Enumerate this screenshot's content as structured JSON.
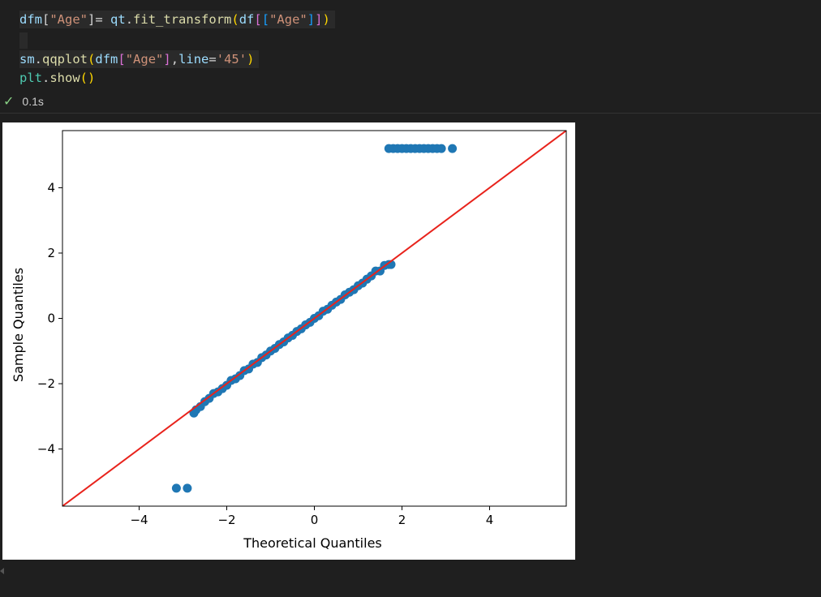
{
  "code": {
    "line1": [
      {
        "t": "dfm",
        "c": "#9cdcfe"
      },
      {
        "t": "[",
        "c": "#d4d4d4"
      },
      {
        "t": "\"Age\"",
        "c": "#ce9178"
      },
      {
        "t": "]",
        "c": "#d4d4d4"
      },
      {
        "t": "= ",
        "c": "#d4d4d4"
      },
      {
        "t": "qt",
        "c": "#9cdcfe"
      },
      {
        "t": ".",
        "c": "#d4d4d4"
      },
      {
        "t": "fit_transform",
        "c": "#dcdcaa"
      },
      {
        "t": "(",
        "c": "#ffd700"
      },
      {
        "t": "df",
        "c": "#9cdcfe"
      },
      {
        "t": "[",
        "c": "#da70d6"
      },
      {
        "t": "[",
        "c": "#179fff"
      },
      {
        "t": "\"Age\"",
        "c": "#ce9178"
      },
      {
        "t": "]",
        "c": "#179fff"
      },
      {
        "t": "]",
        "c": "#da70d6"
      },
      {
        "t": ")",
        "c": "#ffd700"
      }
    ],
    "line3": [
      {
        "t": "sm",
        "c": "#9cdcfe"
      },
      {
        "t": ".",
        "c": "#d4d4d4"
      },
      {
        "t": "qqplot",
        "c": "#dcdcaa"
      },
      {
        "t": "(",
        "c": "#ffd700"
      },
      {
        "t": "dfm",
        "c": "#9cdcfe"
      },
      {
        "t": "[",
        "c": "#da70d6"
      },
      {
        "t": "\"Age\"",
        "c": "#ce9178"
      },
      {
        "t": "]",
        "c": "#da70d6"
      },
      {
        "t": ",",
        "c": "#d4d4d4"
      },
      {
        "t": "line",
        "c": "#9cdcfe"
      },
      {
        "t": "=",
        "c": "#d4d4d4"
      },
      {
        "t": "'45'",
        "c": "#ce9178"
      },
      {
        "t": ")",
        "c": "#ffd700"
      }
    ],
    "line4": [
      {
        "t": "plt",
        "c": "#4ec9b0"
      },
      {
        "t": ".",
        "c": "#d4d4d4"
      },
      {
        "t": "show",
        "c": "#dcdcaa"
      },
      {
        "t": "()",
        "c": "#ffd700"
      }
    ]
  },
  "status": {
    "check": "✓",
    "time": "0.1s"
  },
  "chart_data": {
    "type": "scatter",
    "title": "",
    "xlabel": "Theoretical Quantiles",
    "ylabel": "Sample Quantiles",
    "xlim": [
      -5.75,
      5.75
    ],
    "ylim": [
      -5.75,
      5.75
    ],
    "xticks": [
      -4,
      -2,
      0,
      2,
      4
    ],
    "yticks": [
      -4,
      -2,
      0,
      2,
      4
    ],
    "grid": false,
    "point_color": "#1f77b4",
    "line_color": "#e8231c",
    "reference_line": {
      "type": "45-degree",
      "from": [
        -5.75,
        -5.75
      ],
      "to": [
        5.75,
        5.75
      ]
    },
    "series": [
      {
        "points": [
          [
            -3.15,
            -5.2
          ],
          [
            -2.9,
            -5.2
          ],
          [
            -2.75,
            -2.9
          ],
          [
            -2.7,
            -2.8
          ],
          [
            -2.6,
            -2.7
          ],
          [
            -2.5,
            -2.55
          ],
          [
            -2.4,
            -2.45
          ],
          [
            -2.3,
            -2.3
          ],
          [
            -2.2,
            -2.25
          ],
          [
            -2.1,
            -2.15
          ],
          [
            -2.0,
            -2.05
          ],
          [
            -1.9,
            -1.9
          ],
          [
            -1.8,
            -1.85
          ],
          [
            -1.7,
            -1.75
          ],
          [
            -1.6,
            -1.6
          ],
          [
            -1.5,
            -1.55
          ],
          [
            -1.4,
            -1.4
          ],
          [
            -1.3,
            -1.35
          ],
          [
            -1.2,
            -1.2
          ],
          [
            -1.1,
            -1.12
          ],
          [
            -1.0,
            -1.0
          ],
          [
            -0.9,
            -0.92
          ],
          [
            -0.8,
            -0.8
          ],
          [
            -0.7,
            -0.72
          ],
          [
            -0.6,
            -0.6
          ],
          [
            -0.5,
            -0.52
          ],
          [
            -0.4,
            -0.4
          ],
          [
            -0.3,
            -0.32
          ],
          [
            -0.2,
            -0.2
          ],
          [
            -0.1,
            -0.12
          ],
          [
            0.0,
            0.0
          ],
          [
            0.1,
            0.08
          ],
          [
            0.2,
            0.22
          ],
          [
            0.3,
            0.28
          ],
          [
            0.4,
            0.4
          ],
          [
            0.5,
            0.5
          ],
          [
            0.6,
            0.58
          ],
          [
            0.7,
            0.72
          ],
          [
            0.8,
            0.8
          ],
          [
            0.9,
            0.88
          ],
          [
            1.0,
            1.0
          ],
          [
            1.1,
            1.08
          ],
          [
            1.2,
            1.2
          ],
          [
            1.3,
            1.3
          ],
          [
            1.4,
            1.45
          ],
          [
            1.5,
            1.45
          ],
          [
            1.6,
            1.62
          ],
          [
            1.7,
            1.65
          ],
          [
            1.75,
            1.65
          ],
          [
            1.7,
            5.2
          ],
          [
            1.8,
            5.2
          ],
          [
            1.9,
            5.2
          ],
          [
            2.0,
            5.2
          ],
          [
            2.1,
            5.2
          ],
          [
            2.2,
            5.2
          ],
          [
            2.3,
            5.2
          ],
          [
            2.4,
            5.2
          ],
          [
            2.5,
            5.2
          ],
          [
            2.6,
            5.2
          ],
          [
            2.7,
            5.2
          ],
          [
            2.8,
            5.2
          ],
          [
            2.9,
            5.2
          ],
          [
            3.15,
            5.2
          ]
        ]
      }
    ]
  }
}
